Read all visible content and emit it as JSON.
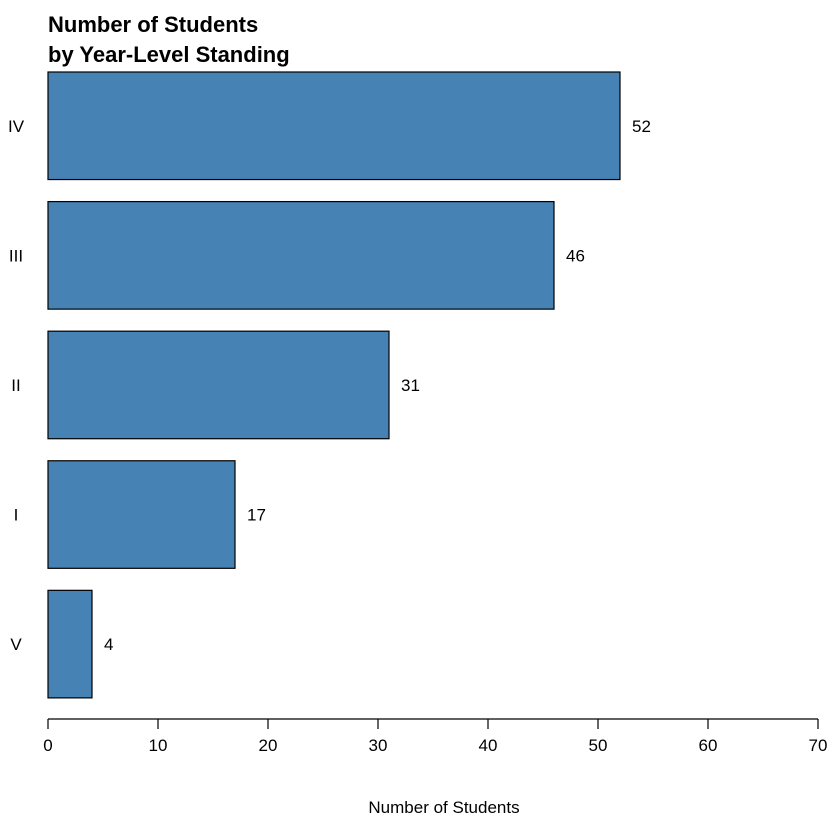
{
  "chart_data": {
    "type": "bar",
    "orientation": "horizontal",
    "title_lines": [
      "Number of Students",
      "by Year-Level Standing"
    ],
    "categories": [
      "IV",
      "III",
      "II",
      "I",
      "V"
    ],
    "values": [
      52,
      46,
      31,
      17,
      4
    ],
    "xlabel": "Number of Students",
    "ylabel": "",
    "xlim": [
      0,
      70
    ],
    "xticks": [
      0,
      10,
      20,
      30,
      40,
      50,
      60,
      70
    ],
    "grid": false,
    "legend": "none",
    "bar_color": "#4682B4",
    "bar_border_color": "#000000"
  }
}
